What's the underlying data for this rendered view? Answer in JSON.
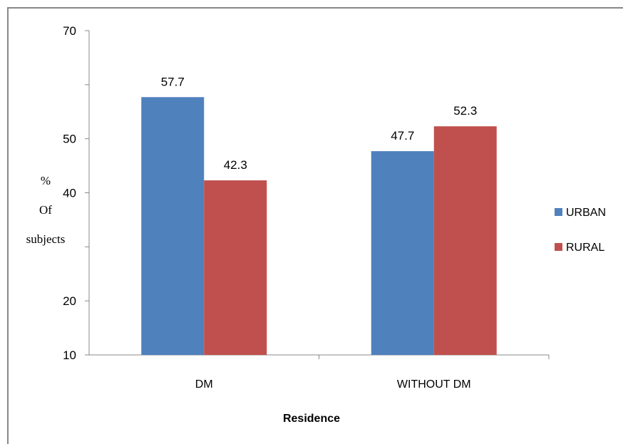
{
  "chart_data": {
    "type": "bar",
    "categories": [
      "DM",
      "WITHOUT DM"
    ],
    "series": [
      {
        "name": "URBAN",
        "values": [
          57.7,
          47.7
        ],
        "color": "#4F81BD"
      },
      {
        "name": "RURAL",
        "values": [
          42.3,
          52.3
        ],
        "color": "#C0504D"
      }
    ],
    "xlabel": "Residence",
    "ylabel_lines": [
      "%",
      "Of",
      "subjects"
    ],
    "y_tick_labels": [
      {
        "value": 10,
        "label": "10"
      },
      {
        "value": 20,
        "label": "20"
      },
      {
        "value": 40,
        "label": "40"
      },
      {
        "value": 50,
        "label": "50"
      },
      {
        "value": 70,
        "label": "70"
      }
    ],
    "y_tick_marks": [
      10,
      20,
      30,
      40,
      50,
      60,
      70
    ],
    "ylim": [
      10,
      70
    ],
    "grid": false,
    "legend_position": "right"
  }
}
